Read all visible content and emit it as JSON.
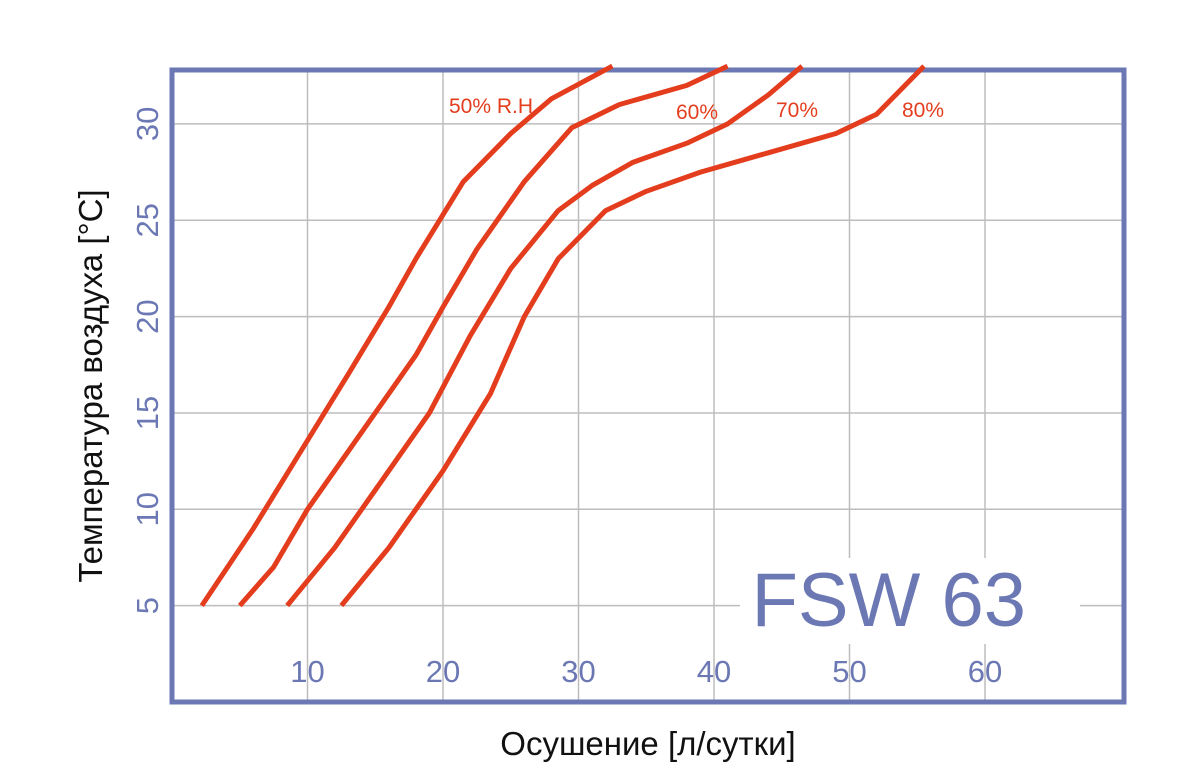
{
  "chart_data": {
    "type": "line",
    "model": "FSW 63",
    "xlabel": "Осушение [л/сутки]",
    "ylabel": "Температура воздуха [°C]",
    "xlim": [
      0,
      65
    ],
    "ylim": [
      0,
      33
    ],
    "x_ticks": [
      "10",
      "20",
      "30",
      "40",
      "50",
      "60"
    ],
    "y_ticks": [
      "5",
      "10",
      "15",
      "20",
      "25",
      "30"
    ],
    "grid": true,
    "colors": {
      "series": "#e43d1e",
      "axis": "#6b78b4",
      "grid": "#bdbdbd"
    },
    "series": [
      {
        "name": "50% R.H.",
        "points": [
          [
            2.2,
            5
          ],
          [
            6,
            9
          ],
          [
            9.5,
            13
          ],
          [
            13,
            17
          ],
          [
            16,
            20.5
          ],
          [
            18,
            23
          ],
          [
            21.5,
            27
          ],
          [
            25,
            29.5
          ],
          [
            28,
            31.3
          ],
          [
            32.5,
            33
          ]
        ]
      },
      {
        "name": "60%",
        "points": [
          [
            5,
            5
          ],
          [
            7.5,
            7
          ],
          [
            10,
            10
          ],
          [
            14,
            14
          ],
          [
            18,
            18
          ],
          [
            20,
            20.5
          ],
          [
            22.5,
            23.5
          ],
          [
            26,
            27
          ],
          [
            29.5,
            29.8
          ],
          [
            33,
            31
          ],
          [
            38,
            32
          ],
          [
            41,
            33
          ]
        ]
      },
      {
        "name": "70%",
        "points": [
          [
            8.5,
            5
          ],
          [
            12,
            8
          ],
          [
            15,
            11
          ],
          [
            19,
            15
          ],
          [
            22,
            19
          ],
          [
            25,
            22.5
          ],
          [
            28.5,
            25.5
          ],
          [
            31,
            26.8
          ],
          [
            34,
            28
          ],
          [
            38,
            29
          ],
          [
            41,
            30
          ],
          [
            44,
            31.5
          ],
          [
            46.5,
            33
          ]
        ]
      },
      {
        "name": "80%",
        "points": [
          [
            12.5,
            5
          ],
          [
            16,
            8
          ],
          [
            20,
            12
          ],
          [
            23.5,
            16
          ],
          [
            26,
            20
          ],
          [
            28.5,
            23
          ],
          [
            32,
            25.5
          ],
          [
            35,
            26.5
          ],
          [
            39,
            27.5
          ],
          [
            44,
            28.5
          ],
          [
            49,
            29.5
          ],
          [
            52,
            30.5
          ],
          [
            55.5,
            33
          ]
        ]
      }
    ]
  }
}
